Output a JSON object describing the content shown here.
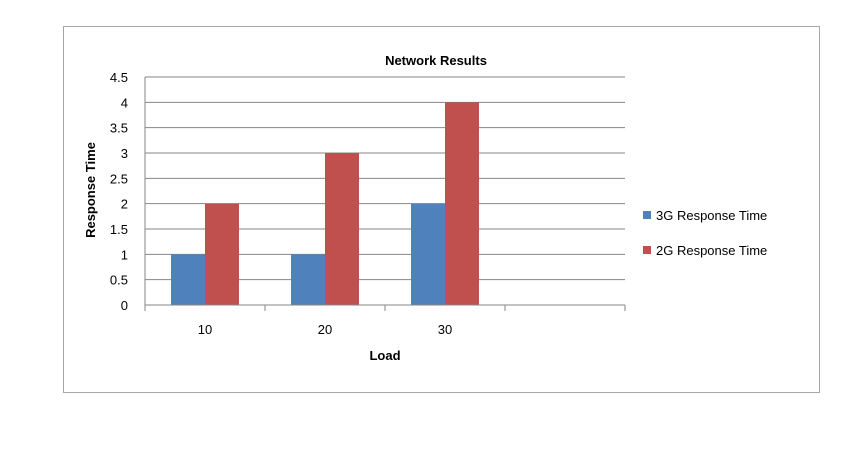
{
  "chart_data": {
    "type": "bar",
    "title": "Network Results",
    "xlabel": "Load",
    "ylabel": "Response Time",
    "categories": [
      "10",
      "20",
      "30",
      ""
    ],
    "series": [
      {
        "name": "3G Response Time",
        "values": [
          1,
          1,
          2,
          null
        ],
        "color": "#4f81bd"
      },
      {
        "name": "2G Response Time",
        "values": [
          2,
          3,
          4,
          null
        ],
        "color": "#c0504d"
      }
    ],
    "ylim": [
      0,
      4.5
    ],
    "yticks": [
      "0",
      "0.5",
      "1",
      "1.5",
      "2",
      "2.5",
      "3",
      "3.5",
      "4",
      "4.5"
    ],
    "grid": true,
    "legend_position": "right"
  }
}
